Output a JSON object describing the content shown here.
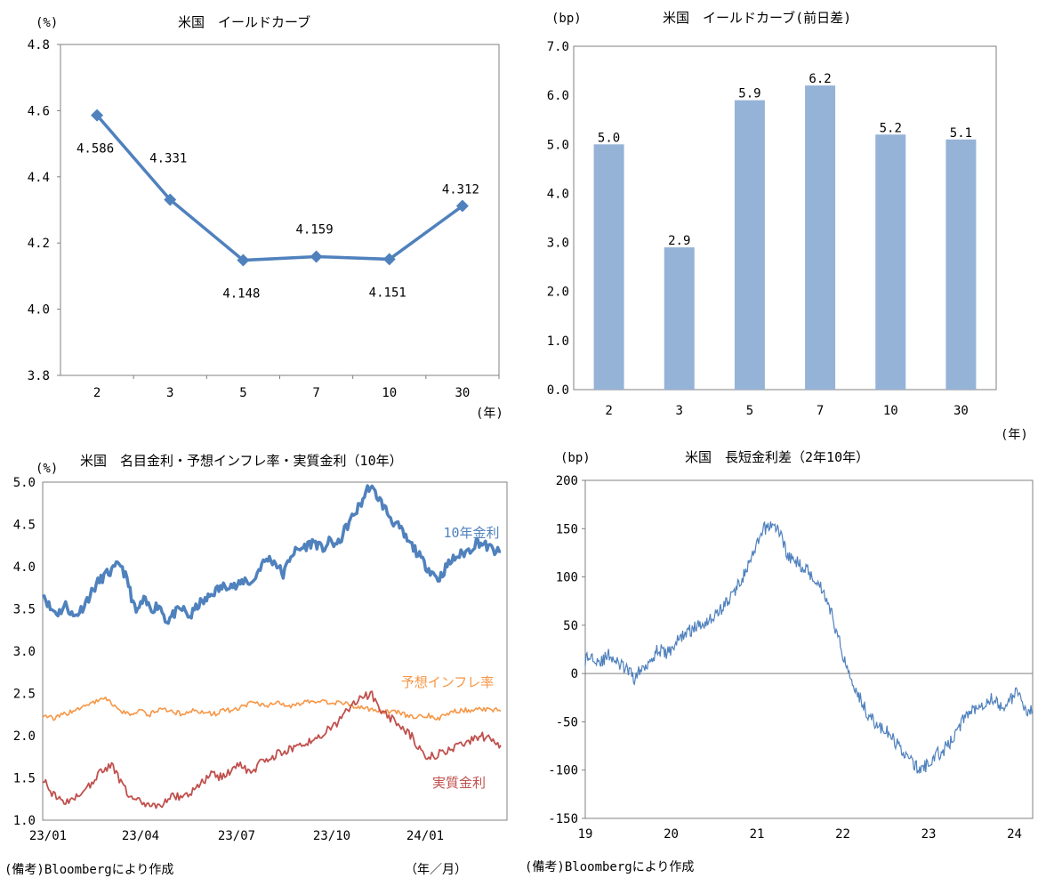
{
  "chart_data": [
    {
      "id": "yield_curve",
      "type": "line",
      "title": "米国　イールドカーブ",
      "ylabel": "(%)",
      "xlabel": "(年)",
      "categories": [
        "2",
        "3",
        "5",
        "7",
        "10",
        "30"
      ],
      "values": [
        4.586,
        4.331,
        4.148,
        4.159,
        4.151,
        4.312
      ],
      "data_labels": [
        "4.586",
        "4.331",
        "4.148",
        "4.159",
        "4.151",
        "4.312"
      ],
      "yticks": [
        "4.8",
        "4.6",
        "4.4",
        "4.2",
        "4.0",
        "3.8"
      ],
      "ylim": [
        3.8,
        4.8
      ],
      "color": "#4f81bd"
    },
    {
      "id": "yield_change",
      "type": "bar",
      "title": "米国　イールドカーブ(前日差)",
      "ylabel": "(bp)",
      "xlabel": "(年)",
      "categories": [
        "2",
        "3",
        "5",
        "7",
        "10",
        "30"
      ],
      "values": [
        5.0,
        2.9,
        5.9,
        6.2,
        5.2,
        5.1
      ],
      "data_labels": [
        "5.0",
        "2.9",
        "5.9",
        "6.2",
        "5.2",
        "5.1"
      ],
      "yticks": [
        "7.0",
        "6.0",
        "5.0",
        "4.0",
        "3.0",
        "2.0",
        "1.0",
        "0.0"
      ],
      "ylim": [
        0,
        7
      ],
      "color": "#95b3d7"
    },
    {
      "id": "real_rates",
      "type": "line",
      "title": "米国　名目金利・予想インフレ率・実質金利（10年）",
      "ylabel": "(%)",
      "xlabel": "（年／月）",
      "note": "(備考)Bloombergにより作成",
      "xticks": [
        "23/01",
        "23/04",
        "23/07",
        "23/10",
        "24/01"
      ],
      "yticks": [
        "5.0",
        "4.5",
        "4.0",
        "3.5",
        "3.0",
        "2.5",
        "2.0",
        "1.5",
        "1.0"
      ],
      "ylim": [
        1.0,
        5.0
      ],
      "series": [
        {
          "name": "10年金利",
          "color": "#4f81bd",
          "values": [
            3.7,
            3.5,
            3.45,
            3.55,
            3.4,
            3.5,
            3.65,
            3.8,
            3.9,
            3.95,
            4.05,
            3.8,
            3.45,
            3.6,
            3.5,
            3.55,
            3.35,
            3.45,
            3.5,
            3.4,
            3.55,
            3.6,
            3.7,
            3.75,
            3.8,
            3.75,
            3.85,
            3.8,
            4.0,
            4.1,
            4.05,
            3.9,
            4.15,
            4.2,
            4.25,
            4.3,
            4.2,
            4.3,
            4.25,
            4.45,
            4.6,
            4.75,
            4.95,
            4.85,
            4.7,
            4.55,
            4.45,
            4.3,
            4.2,
            4.05,
            3.95,
            3.85,
            4.0,
            4.1,
            4.15,
            4.2,
            4.3,
            4.25,
            4.2,
            4.15
          ]
        },
        {
          "name": "予想インフレ率",
          "color": "#f79646",
          "values": [
            2.25,
            2.2,
            2.25,
            2.3,
            2.35,
            2.4,
            2.45,
            2.3,
            2.25,
            2.3,
            2.25,
            2.3,
            2.3,
            2.25,
            2.3,
            2.28,
            2.25,
            2.3,
            2.3,
            2.35,
            2.4,
            2.35,
            2.4,
            2.35,
            2.38,
            2.4,
            2.42,
            2.38,
            2.4,
            2.35,
            2.33,
            2.3,
            2.28,
            2.3,
            2.25,
            2.2,
            2.25,
            2.2,
            2.25,
            2.3,
            2.3,
            2.32,
            2.3,
            2.3
          ]
        },
        {
          "name": "実質金利",
          "color": "#c0504d",
          "values": [
            1.5,
            1.3,
            1.2,
            1.25,
            1.35,
            1.45,
            1.6,
            1.65,
            1.4,
            1.25,
            1.2,
            1.15,
            1.2,
            1.3,
            1.25,
            1.35,
            1.45,
            1.55,
            1.5,
            1.6,
            1.65,
            1.55,
            1.7,
            1.75,
            1.8,
            1.85,
            1.9,
            1.95,
            2.0,
            2.1,
            2.2,
            2.35,
            2.45,
            2.5,
            2.3,
            2.2,
            2.1,
            2.0,
            1.8,
            1.75,
            1.8,
            1.85,
            1.9,
            1.95,
            2.0,
            1.95,
            1.85
          ]
        }
      ]
    },
    {
      "id": "spread",
      "type": "line",
      "title": "米国　長短金利差（2年10年）",
      "ylabel": "(bp)",
      "note": "(備考)Bloombergにより作成",
      "xticks": [
        "19",
        "20",
        "21",
        "22",
        "23",
        "24"
      ],
      "yticks": [
        "200",
        "150",
        "100",
        "50",
        "0",
        "-50",
        "-100",
        "-150"
      ],
      "ylim": [
        -150,
        200
      ],
      "series": [
        {
          "name": "長短金利差",
          "color": "#4f81bd",
          "values": [
            15,
            18,
            12,
            20,
            10,
            5,
            -5,
            5,
            15,
            25,
            20,
            30,
            40,
            45,
            50,
            55,
            60,
            70,
            80,
            95,
            110,
            130,
            150,
            155,
            145,
            120,
            115,
            110,
            100,
            90,
            70,
            40,
            10,
            -10,
            -30,
            -45,
            -55,
            -60,
            -70,
            -80,
            -90,
            -100,
            -95,
            -85,
            -80,
            -70,
            -55,
            -40,
            -35,
            -30,
            -25,
            -35,
            -30,
            -20,
            -35,
            -40
          ]
        }
      ]
    }
  ]
}
